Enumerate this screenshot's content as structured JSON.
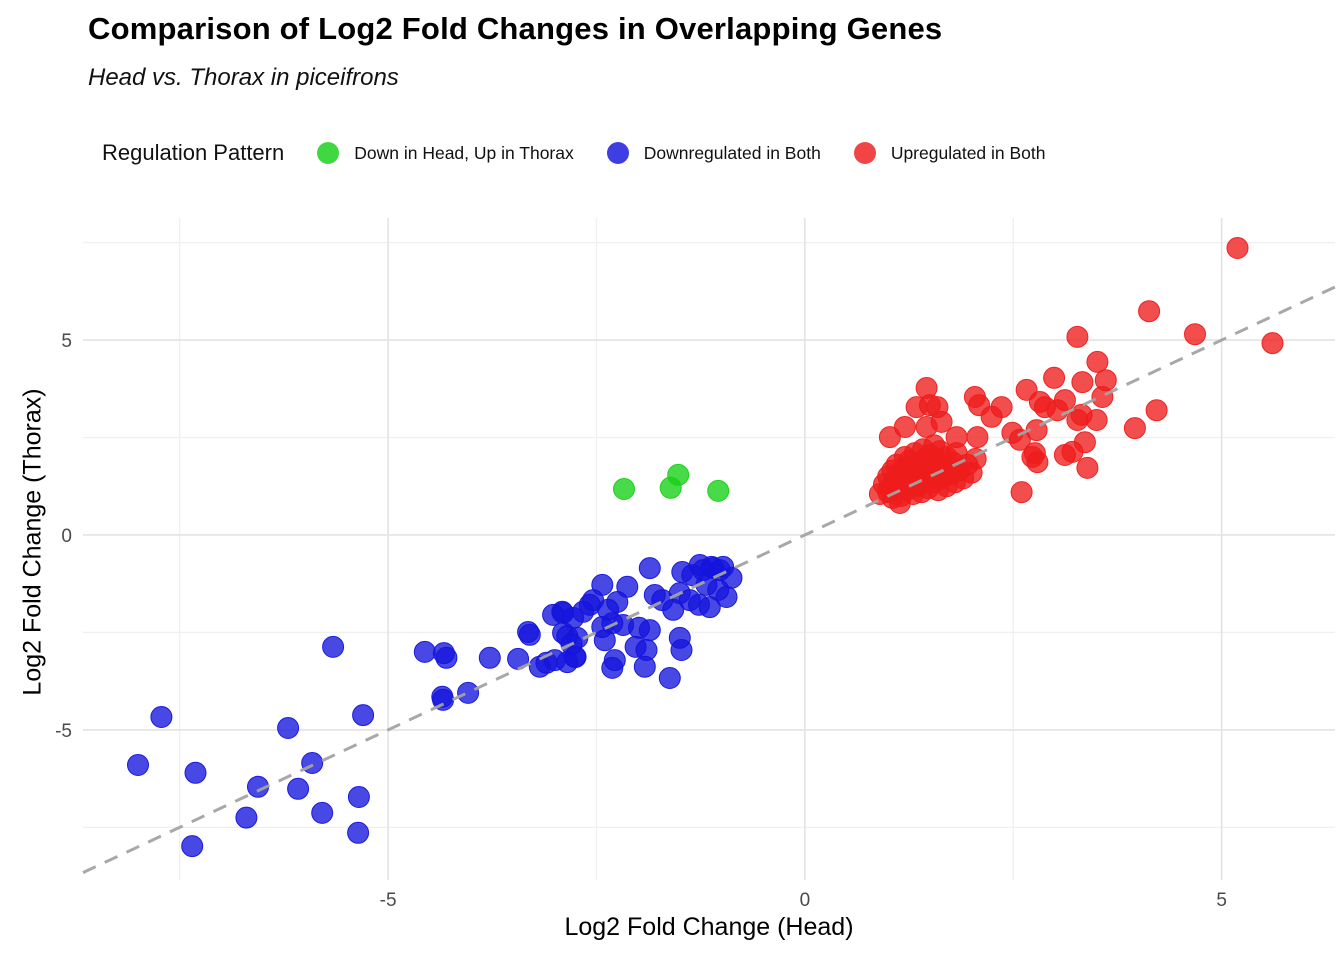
{
  "header": {
    "title": "Comparison of Log2 Fold Changes in Overlapping Genes",
    "subtitle": "Head vs. Thorax in piceifrons"
  },
  "legend": {
    "title": "Regulation Pattern"
  },
  "chart_data": {
    "type": "scatter",
    "title": "Comparison of Log2 Fold Changes in Overlapping Genes",
    "subtitle": "Head vs. Thorax in piceifrons",
    "xlabel": "Log2 Fold Change (Head)",
    "ylabel": "Log2 Fold Change (Thorax)",
    "xlim": [
      -8.66,
      6.36
    ],
    "ylim": [
      -8.85,
      8.13
    ],
    "x_ticks": [
      -5,
      0,
      5
    ],
    "y_ticks": [
      -5,
      0,
      5
    ],
    "x_minor_ticks": [
      -7.5,
      -2.5,
      2.5
    ],
    "y_minor_ticks": [
      -7.5,
      -2.5,
      2.5,
      7.5
    ],
    "grid": true,
    "legend_position": "top",
    "legend_title": "Regulation Pattern",
    "reference_line": {
      "equation": "y = x",
      "style": "dashed",
      "color": "#A3A3A3"
    },
    "point_radius": 10.5,
    "point_opacity": 0.78,
    "series": [
      {
        "name": "Down in Head, Up in Thorax",
        "color": "#16D016",
        "points": [
          [
            -2.17,
            1.18
          ],
          [
            -1.61,
            1.21
          ],
          [
            -1.52,
            1.54
          ],
          [
            -1.04,
            1.13
          ]
        ]
      },
      {
        "name": "Downregulated in Both",
        "color": "#1414DC",
        "points": [
          [
            -8.0,
            -5.9
          ],
          [
            -7.72,
            -4.67
          ],
          [
            -7.35,
            -7.98
          ],
          [
            -7.31,
            -6.1
          ],
          [
            -6.7,
            -7.25
          ],
          [
            -6.56,
            -6.46
          ],
          [
            -6.2,
            -4.95
          ],
          [
            -6.08,
            -6.51
          ],
          [
            -5.91,
            -5.85
          ],
          [
            -5.79,
            -7.13
          ],
          [
            -5.66,
            -2.87
          ],
          [
            -5.36,
            -7.64
          ],
          [
            -5.35,
            -6.72
          ],
          [
            -5.3,
            -4.62
          ],
          [
            -4.56,
            -3.0
          ],
          [
            -4.35,
            -4.15
          ],
          [
            -4.34,
            -4.23
          ],
          [
            -4.33,
            -3.03
          ],
          [
            -4.3,
            -3.15
          ],
          [
            -4.04,
            -4.05
          ],
          [
            -3.78,
            -3.15
          ],
          [
            -3.44,
            -3.18
          ],
          [
            -3.32,
            -2.49
          ],
          [
            -3.3,
            -2.56
          ],
          [
            -3.18,
            -3.38
          ],
          [
            -3.1,
            -3.28
          ],
          [
            -3.02,
            -2.05
          ],
          [
            -3.0,
            -3.21
          ],
          [
            -2.91,
            -1.97
          ],
          [
            -2.9,
            -2.0
          ],
          [
            -2.9,
            -2.51
          ],
          [
            -2.85,
            -2.6
          ],
          [
            -2.85,
            -3.26
          ],
          [
            -2.8,
            -2.8
          ],
          [
            -2.78,
            -2.13
          ],
          [
            -2.76,
            -3.13
          ],
          [
            -2.75,
            -3.13
          ],
          [
            -2.73,
            -2.64
          ],
          [
            -2.66,
            -1.97
          ],
          [
            -2.58,
            -1.79
          ],
          [
            -2.54,
            -1.67
          ],
          [
            -2.43,
            -1.28
          ],
          [
            -2.43,
            -2.36
          ],
          [
            -2.4,
            -2.7
          ],
          [
            -2.36,
            -1.92
          ],
          [
            -2.31,
            -2.26
          ],
          [
            -2.31,
            -3.41
          ],
          [
            -2.28,
            -3.21
          ],
          [
            -2.25,
            -1.72
          ],
          [
            -2.18,
            -2.31
          ],
          [
            -2.13,
            -1.33
          ],
          [
            -2.03,
            -2.87
          ],
          [
            -1.99,
            -2.38
          ],
          [
            -1.92,
            -3.38
          ],
          [
            -1.9,
            -2.95
          ],
          [
            -1.86,
            -0.85
          ],
          [
            -1.86,
            -2.44
          ],
          [
            -1.8,
            -1.54
          ],
          [
            -1.71,
            -1.67
          ],
          [
            -1.62,
            -3.67
          ],
          [
            -1.58,
            -1.92
          ],
          [
            -1.5,
            -1.49
          ],
          [
            -1.5,
            -2.64
          ],
          [
            -1.48,
            -2.95
          ],
          [
            -1.47,
            -0.95
          ],
          [
            -1.38,
            -1.67
          ],
          [
            -1.35,
            -1.03
          ],
          [
            -1.27,
            -1.79
          ],
          [
            -1.26,
            -0.77
          ],
          [
            -1.22,
            -0.9
          ],
          [
            -1.18,
            -1.28
          ],
          [
            -1.14,
            -1.85
          ],
          [
            -1.12,
            -0.82
          ],
          [
            -1.1,
            -0.85
          ],
          [
            -1.04,
            -1.41
          ],
          [
            -1.02,
            -0.9
          ],
          [
            -0.98,
            -0.82
          ],
          [
            -0.94,
            -1.59
          ],
          [
            -0.88,
            -1.1
          ]
        ]
      },
      {
        "name": "Upregulated in Both",
        "color": "#EE1C1C",
        "points": [
          [
            0.9,
            1.05
          ],
          [
            0.95,
            1.3
          ],
          [
            1.0,
            1.1
          ],
          [
            1.0,
            1.5
          ],
          [
            1.02,
            1.22
          ],
          [
            1.05,
            0.95
          ],
          [
            1.05,
            1.65
          ],
          [
            1.08,
            1.4
          ],
          [
            1.1,
            1.15
          ],
          [
            1.1,
            1.8
          ],
          [
            1.12,
            1.55
          ],
          [
            1.14,
            0.82
          ],
          [
            1.15,
            1.0
          ],
          [
            1.15,
            1.3
          ],
          [
            1.18,
            1.7
          ],
          [
            1.2,
            1.45
          ],
          [
            1.2,
            2.0
          ],
          [
            1.22,
            1.15
          ],
          [
            1.25,
            1.6
          ],
          [
            1.25,
            1.9
          ],
          [
            1.28,
            1.35
          ],
          [
            1.3,
            1.05
          ],
          [
            1.3,
            1.75
          ],
          [
            1.32,
            2.1
          ],
          [
            1.35,
            1.25
          ],
          [
            1.35,
            1.5
          ],
          [
            1.38,
            1.85
          ],
          [
            1.4,
            1.1
          ],
          [
            1.4,
            1.65
          ],
          [
            1.42,
            2.2
          ],
          [
            1.45,
            1.4
          ],
          [
            1.45,
            1.95
          ],
          [
            1.48,
            1.2
          ],
          [
            1.5,
            1.55
          ],
          [
            1.5,
            2.05
          ],
          [
            1.52,
            1.75
          ],
          [
            1.55,
            1.35
          ],
          [
            1.55,
            2.3
          ],
          [
            1.58,
            1.6
          ],
          [
            1.6,
            1.15
          ],
          [
            1.6,
            1.9
          ],
          [
            1.62,
            2.15
          ],
          [
            1.65,
            1.45
          ],
          [
            1.68,
            1.7
          ],
          [
            1.7,
            1.25
          ],
          [
            1.7,
            2.0
          ],
          [
            1.75,
            1.55
          ],
          [
            1.78,
            1.85
          ],
          [
            1.8,
            1.35
          ],
          [
            1.82,
            2.1
          ],
          [
            1.85,
            1.65
          ],
          [
            1.9,
            1.45
          ],
          [
            1.95,
            1.8
          ],
          [
            2.0,
            1.6
          ],
          [
            2.05,
            1.95
          ],
          [
            1.02,
            2.51
          ],
          [
            1.2,
            2.77
          ],
          [
            1.34,
            3.28
          ],
          [
            1.46,
            2.77
          ],
          [
            1.46,
            3.77
          ],
          [
            1.5,
            3.33
          ],
          [
            1.59,
            3.28
          ],
          [
            1.64,
            2.9
          ],
          [
            1.82,
            2.51
          ],
          [
            2.04,
            3.54
          ],
          [
            2.07,
            2.51
          ],
          [
            2.09,
            3.33
          ],
          [
            2.24,
            3.03
          ],
          [
            2.36,
            3.28
          ],
          [
            2.49,
            2.62
          ],
          [
            2.73,
            2.0
          ],
          [
            2.79,
            1.87
          ],
          [
            3.21,
            2.13
          ],
          [
            2.58,
            2.44
          ],
          [
            2.6,
            1.1
          ],
          [
            2.66,
            3.72
          ],
          [
            2.76,
            2.1
          ],
          [
            2.78,
            2.69
          ],
          [
            2.82,
            3.41
          ],
          [
            2.88,
            3.28
          ],
          [
            2.99,
            4.03
          ],
          [
            3.03,
            3.2
          ],
          [
            3.12,
            2.05
          ],
          [
            3.12,
            3.46
          ],
          [
            3.27,
            2.95
          ],
          [
            3.27,
            5.08
          ],
          [
            3.32,
            3.08
          ],
          [
            3.33,
            3.92
          ],
          [
            3.36,
            2.38
          ],
          [
            3.39,
            1.72
          ],
          [
            3.5,
            2.95
          ],
          [
            3.51,
            4.44
          ],
          [
            3.57,
            3.54
          ],
          [
            3.61,
            3.97
          ],
          [
            3.96,
            2.74
          ],
          [
            4.22,
            3.2
          ],
          [
            4.13,
            5.74
          ],
          [
            4.68,
            5.15
          ],
          [
            5.19,
            7.36
          ],
          [
            5.61,
            4.92
          ]
        ]
      }
    ]
  }
}
